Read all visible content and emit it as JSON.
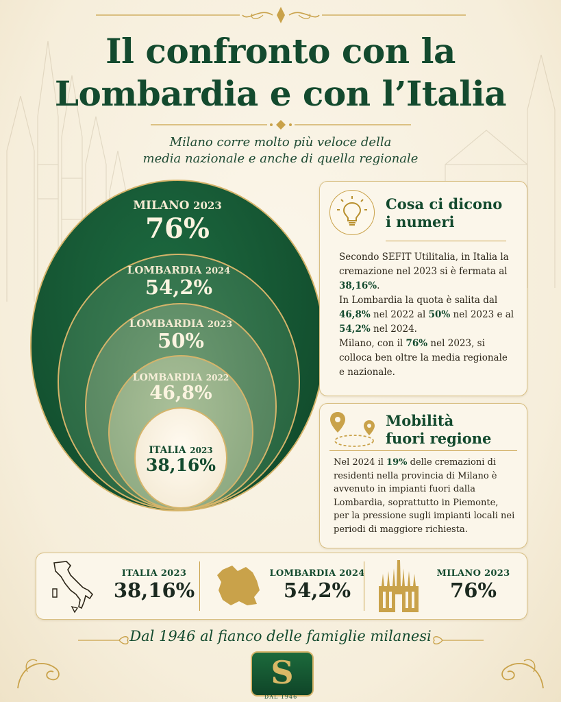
{
  "title_line1": "Il confronto con la",
  "title_line2": "Lombardia e con l’Italia",
  "subtitle_line1": "Milano corre molto più veloce della",
  "subtitle_line2": "media nazionale e anche di quella regionale",
  "circles": [
    {
      "label": "MILANO",
      "year": "2023",
      "value": "76%"
    },
    {
      "label": "LOMBARDIA",
      "year": "2024",
      "value": "54,2%"
    },
    {
      "label": "LOMBARDIA",
      "year": "2023",
      "value": "50%"
    },
    {
      "label": "LOMBARDIA",
      "year": "2022",
      "value": "46,8%"
    },
    {
      "label": "ITALIA",
      "year": "2023",
      "value": "38,16%"
    }
  ],
  "numbers_card": {
    "title_line1": "Cosa ci dicono",
    "title_line2": "i numeri",
    "p1": "Secondo SEFIT Utilitalia, in Italia la cremazione nel 2023 si è fermata al ",
    "p1_bold": "38,16%",
    "p1_end": ".",
    "p2a": "In Lombardia la quota è salita dal ",
    "p2b": "46,8%",
    "p2c": " nel 2022 al ",
    "p2d": "50%",
    "p2e": " nel 2023 e al ",
    "p2f": "54,2%",
    "p2g": " nel 2024.",
    "p3a": "Milano, con il ",
    "p3b": "76%",
    "p3c": " nel 2023, si colloca ben oltre la media regionale e nazionale."
  },
  "mobility_card": {
    "title_line1": "Mobilità",
    "title_line2": "fuori regione",
    "t1": "Nel 2024 il ",
    "t2": "19%",
    "t3": " delle cremazioni di residenti nella provincia di Milano è avvenuto in impianti fuori dalla Lombardia, soprattutto in Piemonte, per la pressione sugli impianti locali nei periodi di maggiore richiesta."
  },
  "stats": [
    {
      "label": "ITALIA 2023",
      "value": "38,16%",
      "icon": "italy-map-icon"
    },
    {
      "label": "LOMBARDIA 2024",
      "value": "54,2%",
      "icon": "lombardy-map-icon"
    },
    {
      "label": "MILANO 2023",
      "value": "76%",
      "icon": "milan-cathedral-icon"
    }
  ],
  "footer": "Dal 1946 al fianco delle famiglie milanesi",
  "logo": {
    "letter": "S",
    "caption": "DAL 1946"
  },
  "colors": {
    "green_dark": "#134a2e",
    "gold": "#c9a24a",
    "cream": "#f8f1e1"
  }
}
